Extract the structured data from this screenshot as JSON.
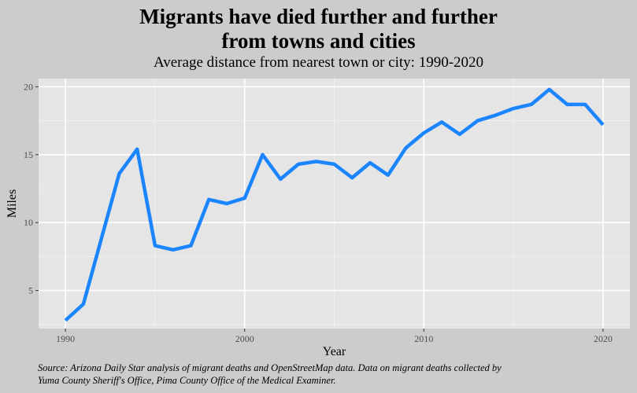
{
  "chart_data": {
    "type": "line",
    "title": "Migrants have died further and further from towns and cities",
    "title_lines": [
      "Migrants have died further and further",
      "from towns and cities"
    ],
    "subtitle": "Average distance from nearest town or city: 1990-2020",
    "xlabel": "Year",
    "ylabel": "Miles",
    "caption_lines": [
      "Source: Arizona Daily Star analysis of migrant deaths and OpenStreetMap data. Data on migrant deaths collected by",
      "Yuma County Sheriff's Office, Pima County Office of the Medical Examiner."
    ],
    "xlim": [
      1988.5,
      2021.5
    ],
    "ylim": [
      2.2,
      20.6
    ],
    "xticks": [
      1990,
      2000,
      2010,
      2020
    ],
    "yticks": [
      5,
      10,
      15,
      20
    ],
    "grid": true,
    "line_color": "#1a85ff",
    "panel_bg": "#e5e5e5",
    "bg": "#cccccc",
    "x": [
      1990,
      1991,
      1992,
      1993,
      1994,
      1995,
      1996,
      1997,
      1998,
      1999,
      2000,
      2001,
      2002,
      2003,
      2004,
      2005,
      2006,
      2007,
      2008,
      2009,
      2010,
      2011,
      2012,
      2013,
      2014,
      2015,
      2016,
      2017,
      2018,
      2019,
      2020
    ],
    "y": [
      2.8,
      4.0,
      8.8,
      13.6,
      15.4,
      8.3,
      8.0,
      8.3,
      11.7,
      11.4,
      11.8,
      15.0,
      13.2,
      14.3,
      14.5,
      14.3,
      13.3,
      14.4,
      13.5,
      15.5,
      16.6,
      17.4,
      16.5,
      17.5,
      17.9,
      18.4,
      18.7,
      19.8,
      18.7,
      18.7,
      17.2
    ]
  }
}
